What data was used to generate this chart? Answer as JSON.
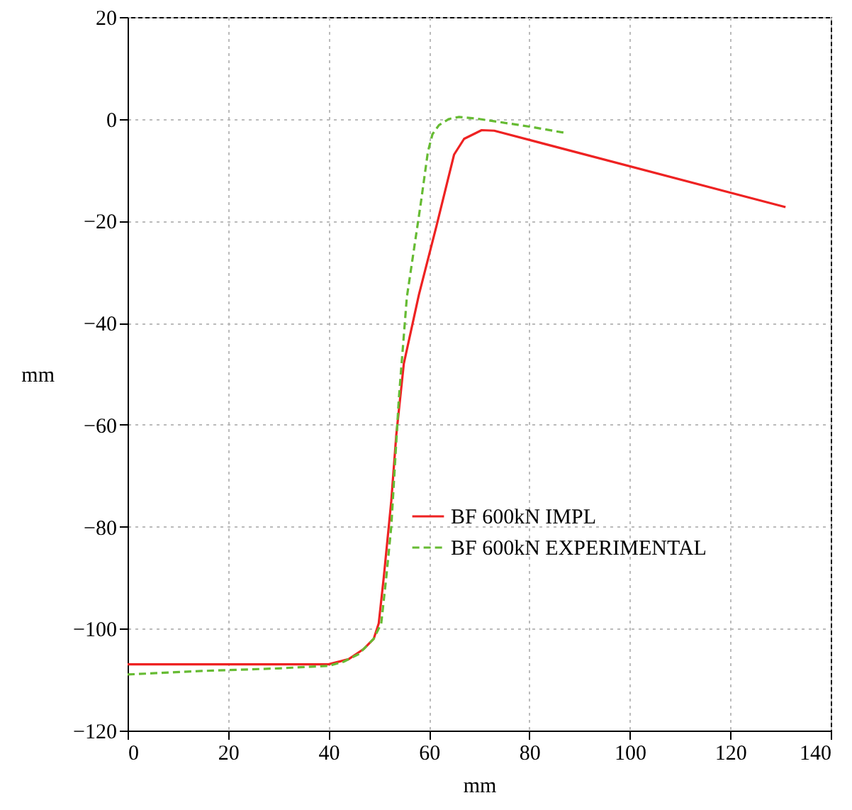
{
  "chart_data": {
    "type": "line",
    "xlabel": "mm",
    "ylabel": "mm",
    "xlim": [
      0,
      140
    ],
    "ylim": [
      -120,
      20
    ],
    "xticks": [
      0,
      20,
      40,
      60,
      80,
      100,
      120,
      140
    ],
    "yticks": [
      -120,
      -100,
      -80,
      -60,
      -40,
      -20,
      0,
      20
    ],
    "grid": true,
    "legend": "right",
    "marker": "none",
    "series": [
      {
        "name": "BF 600kN IMPL",
        "color": "#ee2222",
        "line_style": "solid",
        "x": [
          0,
          40,
          44,
          47,
          49,
          50,
          51,
          52,
          52.5,
          53.5,
          55,
          58,
          61.5,
          65,
          67,
          70.5,
          73,
          131
        ],
        "values": [
          -107,
          -107,
          -106,
          -104,
          -102,
          -99,
          -90,
          -80,
          -75,
          -62,
          -48,
          -34.5,
          -21,
          -7,
          -3.9,
          -2.2,
          -2.3,
          -17.3
        ]
      },
      {
        "name": "BF 600kN EXPERIMENTAL",
        "color": "#66bb33",
        "line_style": "dashed",
        "x": [
          0,
          15,
          30,
          40,
          43,
          46,
          49,
          50.5,
          51.5,
          52.5,
          54,
          55.6,
          58.4,
          59.8,
          60.7,
          62,
          64,
          66,
          70,
          80,
          87.5
        ],
        "values": [
          -109,
          -108.3,
          -107.8,
          -107.3,
          -106.5,
          -105,
          -102,
          -99,
          -90,
          -80,
          -55,
          -35,
          -16.4,
          -6.4,
          -3,
          -1.2,
          0,
          0.4,
          0,
          -1.5,
          -2.8
        ]
      }
    ]
  }
}
